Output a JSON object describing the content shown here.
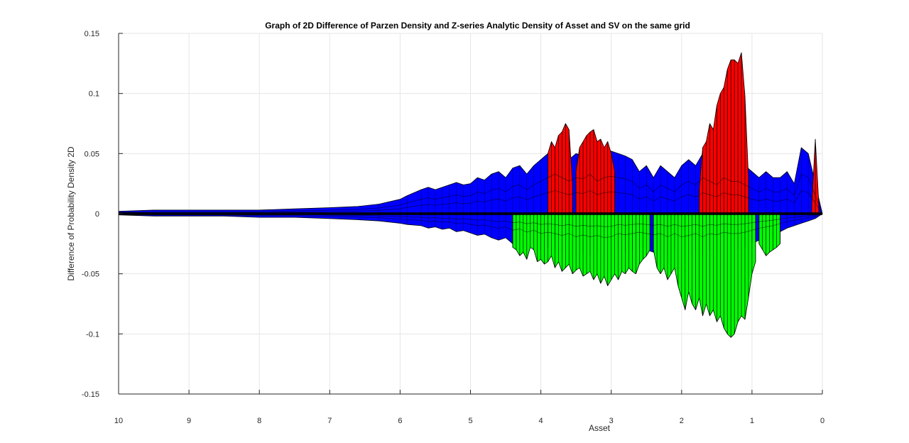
{
  "chart_data": {
    "type": "area",
    "title": "Graph of 2D Difference of Parzen Density and Z-series Analytic Density of Asset and SV on the same grid",
    "xlabel": "Asset",
    "ylabel": "Difference of Probability Density 2D",
    "xlim": [
      10,
      0
    ],
    "ylim": [
      -0.15,
      0.15
    ],
    "x_reversed": true,
    "grid": true,
    "x_ticks": [
      10,
      9,
      8,
      7,
      6,
      5,
      4,
      3,
      2,
      1,
      0
    ],
    "x_tick_labels": [
      "10",
      "9",
      "8",
      "7",
      "6",
      "5",
      "4",
      "3",
      "2",
      "1",
      "0"
    ],
    "y_ticks": [
      0.15,
      0.1,
      0.05,
      0,
      -0.05,
      -0.1,
      -0.15
    ],
    "y_tick_labels": [
      "0.15",
      "0.1",
      "0.05",
      "0",
      "-0.05",
      "-0.1",
      "-0.15"
    ],
    "colors": {
      "positive_envelope": "#0000ff",
      "negative_envelope": "#0000ff",
      "positive_peak": "#ff0000",
      "negative_peak": "#00ff00",
      "edge": "#000000"
    },
    "upper_envelope": {
      "x": [
        10.0,
        9.5,
        9.0,
        8.5,
        8.0,
        7.5,
        7.0,
        6.6,
        6.3,
        6.0,
        5.9,
        5.7,
        5.6,
        5.5,
        5.4,
        5.3,
        5.2,
        5.1,
        5.0,
        4.9,
        4.8,
        4.7,
        4.6,
        4.5,
        4.4,
        4.3,
        4.2,
        4.1,
        4.0,
        3.9,
        3.8,
        3.7,
        3.6,
        3.5,
        3.4,
        3.3,
        3.2,
        3.1,
        3.0,
        2.9,
        2.8,
        2.7,
        2.6,
        2.5,
        2.4,
        2.3,
        2.2,
        2.1,
        2.0,
        1.9,
        1.8,
        1.7,
        1.6,
        1.5,
        1.4,
        1.3,
        1.2,
        1.1,
        1.0,
        0.9,
        0.8,
        0.7,
        0.6,
        0.5,
        0.4,
        0.3,
        0.2,
        0.1,
        0.0
      ],
      "y": [
        0.002,
        0.003,
        0.003,
        0.003,
        0.003,
        0.004,
        0.005,
        0.006,
        0.008,
        0.012,
        0.015,
        0.02,
        0.022,
        0.02,
        0.022,
        0.024,
        0.026,
        0.024,
        0.025,
        0.03,
        0.028,
        0.033,
        0.035,
        0.03,
        0.038,
        0.04,
        0.033,
        0.04,
        0.045,
        0.05,
        0.055,
        0.05,
        0.045,
        0.05,
        0.048,
        0.055,
        0.045,
        0.05,
        0.052,
        0.05,
        0.048,
        0.045,
        0.035,
        0.04,
        0.03,
        0.04,
        0.035,
        0.03,
        0.04,
        0.045,
        0.04,
        0.05,
        0.045,
        0.04,
        0.05,
        0.045,
        0.045,
        0.04,
        0.035,
        0.03,
        0.035,
        0.03,
        0.03,
        0.035,
        0.025,
        0.055,
        0.05,
        0.025,
        0.0
      ]
    },
    "lower_envelope": {
      "x": [
        10.0,
        9.5,
        9.0,
        8.5,
        8.0,
        7.5,
        7.0,
        6.6,
        6.3,
        6.0,
        5.9,
        5.7,
        5.6,
        5.5,
        5.4,
        5.3,
        5.2,
        5.1,
        5.0,
        4.9,
        4.8,
        4.7,
        4.6,
        4.5,
        4.4,
        4.3,
        4.2,
        4.1,
        4.0,
        3.9,
        3.8,
        3.7,
        3.6,
        3.5,
        3.4,
        3.3,
        3.2,
        3.1,
        3.0,
        2.9,
        2.8,
        2.7,
        2.6,
        2.5,
        2.4,
        2.3,
        2.2,
        2.1,
        2.0,
        1.9,
        1.8,
        1.7,
        1.6,
        1.5,
        1.4,
        1.3,
        1.2,
        1.1,
        1.0,
        0.9,
        0.8,
        0.7,
        0.6,
        0.5,
        0.4,
        0.3,
        0.2,
        0.1,
        0.0
      ],
      "y": [
        -0.001,
        -0.002,
        -0.002,
        -0.002,
        -0.003,
        -0.003,
        -0.004,
        -0.005,
        -0.006,
        -0.008,
        -0.009,
        -0.01,
        -0.012,
        -0.011,
        -0.013,
        -0.012,
        -0.015,
        -0.014,
        -0.016,
        -0.018,
        -0.017,
        -0.02,
        -0.022,
        -0.02,
        -0.025,
        -0.023,
        -0.028,
        -0.025,
        -0.03,
        -0.028,
        -0.03,
        -0.033,
        -0.03,
        -0.035,
        -0.032,
        -0.035,
        -0.033,
        -0.036,
        -0.035,
        -0.03,
        -0.032,
        -0.03,
        -0.028,
        -0.03,
        -0.032,
        -0.03,
        -0.035,
        -0.03,
        -0.035,
        -0.033,
        -0.03,
        -0.035,
        -0.03,
        -0.032,
        -0.028,
        -0.03,
        -0.03,
        -0.028,
        -0.025,
        -0.022,
        -0.02,
        -0.018,
        -0.015,
        -0.012,
        -0.01,
        -0.008,
        -0.006,
        -0.004,
        0.0
      ]
    },
    "positive_peaks": [
      {
        "x": [
          3.9,
          3.85,
          3.8,
          3.75,
          3.7,
          3.65,
          3.6,
          3.55
        ],
        "y": [
          0.05,
          0.06,
          0.055,
          0.065,
          0.068,
          0.075,
          0.07,
          0.025
        ]
      },
      {
        "x": [
          3.5,
          3.45,
          3.4,
          3.35,
          3.3,
          3.25,
          3.2,
          3.15,
          3.1,
          3.05,
          3.0,
          2.95
        ],
        "y": [
          0.035,
          0.055,
          0.06,
          0.065,
          0.068,
          0.07,
          0.06,
          0.062,
          0.055,
          0.06,
          0.05,
          0.035
        ]
      },
      {
        "x": [
          1.75,
          1.7,
          1.65,
          1.6,
          1.55,
          1.5,
          1.45,
          1.4,
          1.35,
          1.3,
          1.25,
          1.2,
          1.15,
          1.1,
          1.05
        ],
        "y": [
          0.02,
          0.055,
          0.06,
          0.075,
          0.07,
          0.09,
          0.1,
          0.105,
          0.12,
          0.128,
          0.128,
          0.125,
          0.134,
          0.098,
          0.03
        ]
      },
      {
        "x": [
          0.15,
          0.1,
          0.05
        ],
        "y": [
          0.008,
          0.062,
          0.008
        ]
      }
    ],
    "negative_peaks": [
      {
        "x": [
          4.4,
          4.35,
          4.3,
          4.25,
          4.2,
          4.15,
          4.1,
          4.05,
          4.0,
          3.95,
          3.9,
          3.85,
          3.8,
          3.75,
          3.7,
          3.65,
          3.6,
          3.55,
          3.5,
          3.45,
          3.4,
          3.35,
          3.3,
          3.25,
          3.2,
          3.15,
          3.1,
          3.05,
          3.0,
          2.95,
          2.9,
          2.85,
          2.8,
          2.75,
          2.7,
          2.65,
          2.6,
          2.55,
          2.5,
          2.45
        ],
        "y": [
          -0.028,
          -0.03,
          -0.035,
          -0.032,
          -0.038,
          -0.028,
          -0.03,
          -0.04,
          -0.038,
          -0.042,
          -0.04,
          -0.035,
          -0.045,
          -0.04,
          -0.048,
          -0.045,
          -0.042,
          -0.05,
          -0.047,
          -0.045,
          -0.052,
          -0.05,
          -0.048,
          -0.055,
          -0.05,
          -0.058,
          -0.052,
          -0.06,
          -0.055,
          -0.05,
          -0.055,
          -0.048,
          -0.05,
          -0.045,
          -0.048,
          -0.05,
          -0.042,
          -0.038,
          -0.035,
          -0.03
        ]
      },
      {
        "x": [
          2.4,
          2.35,
          2.3,
          2.25,
          2.2,
          2.15,
          2.1,
          2.05,
          2.0,
          1.95,
          1.9,
          1.85,
          1.8,
          1.75,
          1.7,
          1.65,
          1.6,
          1.55,
          1.5,
          1.45,
          1.4,
          1.35,
          1.3,
          1.25,
          1.2,
          1.15,
          1.1,
          1.05,
          1.0,
          0.95
        ],
        "y": [
          -0.03,
          -0.045,
          -0.05,
          -0.045,
          -0.055,
          -0.05,
          -0.045,
          -0.06,
          -0.07,
          -0.08,
          -0.065,
          -0.075,
          -0.08,
          -0.07,
          -0.085,
          -0.075,
          -0.085,
          -0.08,
          -0.09,
          -0.085,
          -0.095,
          -0.1,
          -0.103,
          -0.1,
          -0.09,
          -0.085,
          -0.088,
          -0.07,
          -0.05,
          -0.04
        ]
      },
      {
        "x": [
          0.9,
          0.85,
          0.8,
          0.75,
          0.7,
          0.65,
          0.6
        ],
        "y": [
          -0.025,
          -0.03,
          -0.035,
          -0.032,
          -0.03,
          -0.028,
          -0.025
        ]
      }
    ]
  }
}
